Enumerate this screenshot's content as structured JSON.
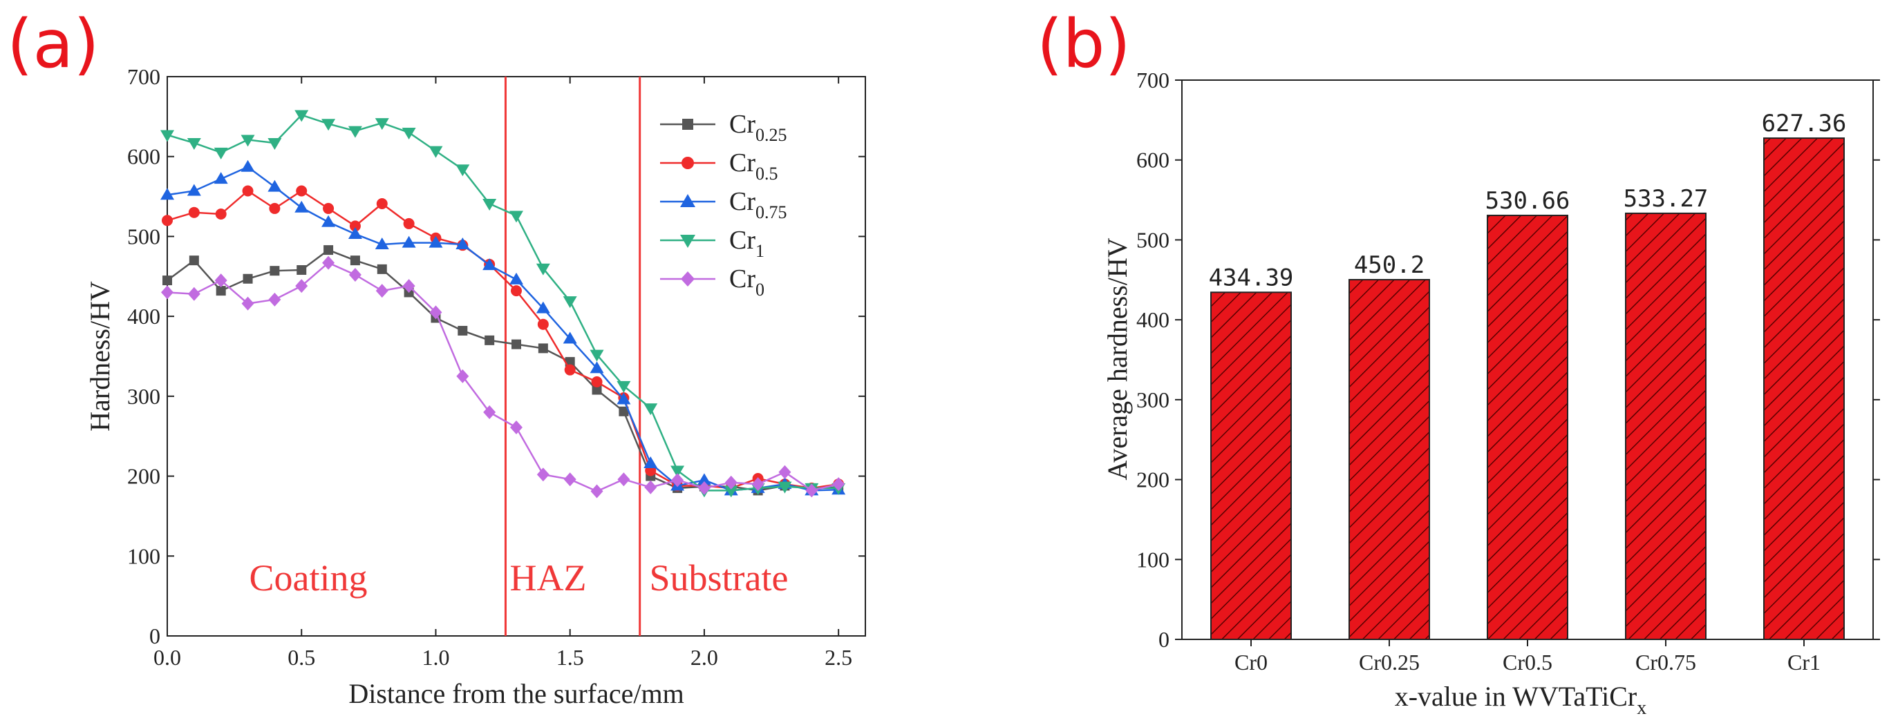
{
  "panels": {
    "a": "(a)",
    "b": "(b)"
  },
  "chart_data": [
    {
      "type": "line",
      "title": "",
      "xlabel": "Distance from the surface/mm",
      "ylabel": "Hardness/HV",
      "xlim": [
        0,
        2.6
      ],
      "ylim": [
        0,
        700
      ],
      "xticks": [
        "0.0",
        "0.5",
        "1.0",
        "1.5",
        "2.0",
        "2.5"
      ],
      "yticks": [
        "0",
        "100",
        "200",
        "300",
        "400",
        "500",
        "600",
        "700"
      ],
      "legend_position": "top-right",
      "boundaries": [
        1.26,
        1.76
      ],
      "regions": [
        "Coating",
        "HAZ",
        "Substrate"
      ],
      "x": [
        0.0,
        0.1,
        0.2,
        0.3,
        0.4,
        0.5,
        0.6,
        0.7,
        0.8,
        0.9,
        1.0,
        1.1,
        1.2,
        1.3,
        1.4,
        1.5,
        1.6,
        1.7,
        1.8,
        1.9,
        2.0,
        2.1,
        2.2,
        2.3,
        2.4,
        2.5
      ],
      "series": [
        {
          "name": "Cr",
          "sub": "0.25",
          "color": "#555555",
          "marker": "square",
          "values": [
            445,
            470,
            432,
            447,
            457,
            458,
            483,
            470,
            459,
            430,
            398,
            382,
            370,
            365,
            360,
            343,
            308,
            281,
            200,
            185,
            187,
            187,
            182,
            188,
            185,
            186
          ]
        },
        {
          "name": "Cr",
          "sub": "0.5",
          "color": "#ef2b2b",
          "marker": "circle",
          "values": [
            520,
            530,
            528,
            557,
            535,
            557,
            535,
            513,
            541,
            516,
            498,
            489,
            465,
            432,
            390,
            333,
            318,
            298,
            207,
            188,
            188,
            185,
            197,
            190,
            185,
            190
          ]
        },
        {
          "name": "Cr",
          "sub": "0.75",
          "color": "#1f64e0",
          "marker": "triangle-up",
          "values": [
            552,
            557,
            572,
            587,
            562,
            536,
            518,
            503,
            490,
            492,
            492,
            490,
            464,
            446,
            410,
            372,
            335,
            296,
            216,
            188,
            195,
            182,
            185,
            190,
            182,
            183
          ]
        },
        {
          "name": "Cr",
          "sub": "1",
          "color": "#2fb084",
          "marker": "triangle-down",
          "values": [
            627,
            617,
            605,
            621,
            617,
            652,
            641,
            632,
            642,
            630,
            607,
            584,
            541,
            526,
            460,
            419,
            352,
            313,
            285,
            207,
            182,
            182,
            185,
            187,
            185,
            185
          ]
        },
        {
          "name": "Cr",
          "sub": "0",
          "color": "#c16be0",
          "marker": "diamond",
          "values": [
            430,
            428,
            445,
            416,
            421,
            438,
            467,
            452,
            432,
            438,
            405,
            325,
            280,
            261,
            202,
            196,
            181,
            196,
            186,
            195,
            185,
            192,
            190,
            205,
            182,
            190
          ]
        }
      ]
    },
    {
      "type": "bar",
      "title": "",
      "xlabel": "x-value in WVTaTiCr",
      "xlabel_sub": "x",
      "ylabel": "Average hardness/HV",
      "ylim": [
        0,
        700
      ],
      "yticks": [
        "0",
        "100",
        "200",
        "300",
        "400",
        "500",
        "600",
        "700"
      ],
      "categories": [
        "Cr0",
        "Cr0.25",
        "Cr0.5",
        "Cr0.75",
        "Cr1"
      ],
      "values": [
        434.39,
        450.2,
        530.66,
        533.27,
        627.36
      ],
      "value_labels": [
        "434.39",
        "450.2",
        "530.66",
        "533.27",
        "627.36"
      ],
      "bar_color": "#e8151b",
      "hatch_color": "#5a0000"
    }
  ]
}
